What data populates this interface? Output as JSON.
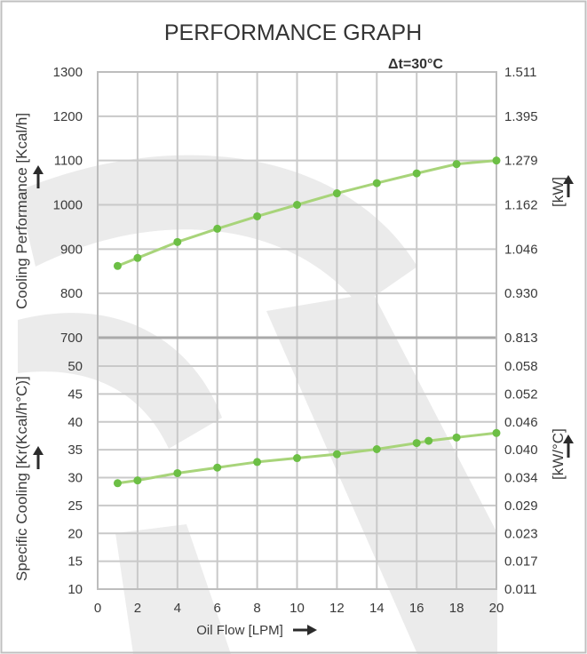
{
  "chart_data": [
    {
      "type": "line",
      "title": "PERFORMANCE GRAPH",
      "annotation": "Δt=30°C",
      "xlabel": "Oil Flow [LPM]",
      "ylabel": "Cooling Performance [Kcal/h]",
      "ylabel_right": "[kW]",
      "xlim": [
        0,
        20
      ],
      "ylim": [
        700,
        1300
      ],
      "x_ticks": [
        "0",
        "2",
        "4",
        "6",
        "8",
        "10",
        "12",
        "14",
        "16",
        "18",
        "20"
      ],
      "y_ticks": [
        "700",
        "800",
        "900",
        "1000",
        "1100",
        "1200",
        "1300"
      ],
      "y_ticks_right": [
        "0.813",
        "0.930",
        "1.046",
        "1.162",
        "1.279",
        "1.395",
        "1.511"
      ],
      "grid": true,
      "series": [
        {
          "x": [
            1,
            2,
            4,
            6,
            8,
            10,
            12,
            14,
            16,
            18,
            20
          ],
          "y": [
            862,
            880,
            916,
            946,
            974,
            1000,
            1026,
            1049,
            1071,
            1092,
            1100
          ]
        }
      ]
    },
    {
      "type": "line",
      "xlabel": "Oil Flow [LPM]",
      "ylabel": "Specific Cooling [Kr(Kcal/h°C)]",
      "ylabel_right": "[kW/°C]",
      "xlim": [
        0,
        20
      ],
      "ylim": [
        10,
        55
      ],
      "x_ticks": [
        "0",
        "2",
        "4",
        "6",
        "8",
        "10",
        "12",
        "14",
        "16",
        "18",
        "20"
      ],
      "y_ticks": [
        "10",
        "15",
        "20",
        "25",
        "30",
        "35",
        "40",
        "45",
        "50"
      ],
      "y_ticks_right": [
        "0.011",
        "0.017",
        "0.023",
        "0.029",
        "0.034",
        "0.040",
        "0.046",
        "0.052",
        "0.058"
      ],
      "grid": true,
      "series": [
        {
          "x": [
            1,
            2,
            4,
            6,
            8,
            10,
            12,
            14,
            16,
            16.6,
            18,
            20
          ],
          "y": [
            29,
            29.5,
            30.8,
            31.8,
            32.8,
            33.5,
            34.2,
            35.1,
            36.2,
            36.6,
            37.2,
            38
          ]
        }
      ]
    }
  ],
  "colors": {
    "line": "#a8d47a",
    "marker": "#6cbf45",
    "grid": "#c9c9c9",
    "frame": "#bdbdbd",
    "watermark": "#e9e9e9",
    "text": "#3a3a3a"
  }
}
